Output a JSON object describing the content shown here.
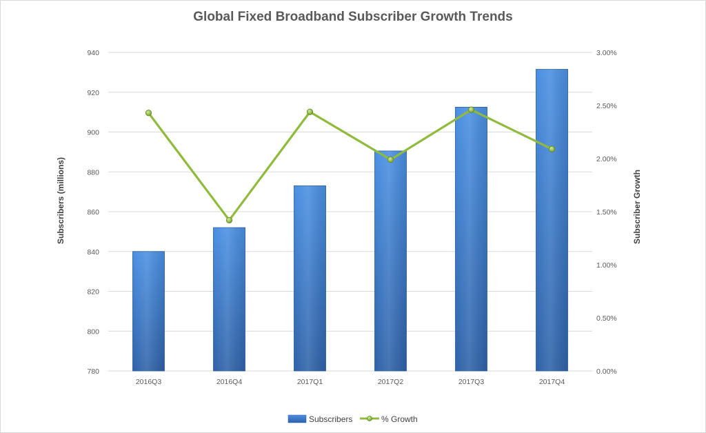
{
  "chart_data": {
    "type": "bar+line",
    "title": "Global Fixed Broadband Subscriber Growth Trends",
    "categories": [
      "2016Q3",
      "2016Q4",
      "2017Q1",
      "2017Q2",
      "2017Q3",
      "2017Q4"
    ],
    "series": [
      {
        "name": "Subscribers",
        "type": "bar",
        "axis": "left",
        "values": [
          840,
          852,
          873,
          890.5,
          912.5,
          931.5
        ],
        "color": "#3a7bd5"
      },
      {
        "name": "% Growth",
        "type": "line",
        "axis": "right",
        "values": [
          2.43,
          1.42,
          2.44,
          1.99,
          2.46,
          2.09
        ],
        "color": "#8fba3c"
      }
    ],
    "ylabel": "Subscribers (millions)",
    "y2label": "Subscriber Growth",
    "ylim": [
      780,
      940
    ],
    "yticks": [
      "780",
      "800",
      "820",
      "840",
      "860",
      "880",
      "900",
      "920",
      "940"
    ],
    "y2lim": [
      0,
      3
    ],
    "y2ticks": [
      "0.00%",
      "0.50%",
      "1.00%",
      "1.50%",
      "2.00%",
      "2.50%",
      "3.00%"
    ],
    "grid": true,
    "legend_position": "bottom"
  }
}
